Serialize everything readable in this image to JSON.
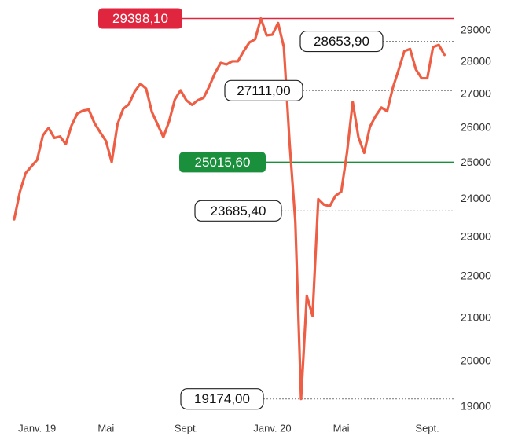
{
  "chart_data": {
    "type": "line",
    "categories": [
      null,
      null,
      null,
      null,
      "Janv. 19",
      null,
      null,
      null,
      null,
      null,
      null,
      null,
      null,
      null,
      null,
      null,
      "Mai",
      null,
      null,
      null,
      null,
      null,
      null,
      null,
      null,
      null,
      null,
      null,
      null,
      null,
      "Sept.",
      null,
      null,
      null,
      null,
      null,
      null,
      null,
      null,
      null,
      null,
      null,
      null,
      null,
      null,
      "Janv. 20",
      null,
      null,
      null,
      null,
      null,
      null,
      null,
      null,
      null,
      null,
      null,
      "Mai",
      null,
      null,
      null,
      null,
      null,
      null,
      null,
      null,
      null,
      null,
      null,
      null,
      null,
      null,
      "Sept.",
      null,
      null,
      null
    ],
    "values": [
      23460,
      24200,
      24710,
      24900,
      25080,
      25780,
      26000,
      25710,
      25750,
      25530,
      26070,
      26420,
      26510,
      26540,
      26140,
      25870,
      25620,
      25020,
      26100,
      26560,
      26700,
      27080,
      27320,
      27170,
      26470,
      26100,
      25730,
      26190,
      26840,
      27120,
      26820,
      26680,
      26820,
      26890,
      27240,
      27650,
      27970,
      27920,
      28020,
      28020,
      28340,
      28620,
      28720,
      29398.1,
      28850,
      28870,
      29250,
      28470,
      25570,
      23400,
      19174,
      21530,
      21050,
      24000,
      23850,
      23810,
      24090,
      24200,
      25280,
      26770,
      25730,
      25280,
      26030,
      26350,
      26600,
      26490,
      27200,
      27750,
      28340,
      28410,
      27770,
      27490,
      27490,
      28470,
      28540,
      28220
    ],
    "color": "#ee5e45",
    "yscale": "log",
    "ylim": [
      18900,
      29550
    ],
    "yticks": [
      19000,
      20000,
      21000,
      22000,
      23000,
      24000,
      25000,
      26000,
      27000,
      28000,
      29000
    ],
    "grid": false,
    "reference_lines": [
      {
        "value": 29398.1,
        "label": "29398,10",
        "color": "#e0263f",
        "style": "solid",
        "box": "filled"
      },
      {
        "value": 28653.9,
        "label": "28653,90",
        "color": "#888888",
        "style": "dotted",
        "box": "outlined"
      },
      {
        "value": 27111,
        "label": "27111,00",
        "color": "#888888",
        "style": "dotted",
        "box": "outlined"
      },
      {
        "value": 25015.6,
        "label": "25015,60",
        "color": "#1a8f3c",
        "style": "solid",
        "box": "filled"
      },
      {
        "value": 23685.4,
        "label": "23685,40",
        "color": "#888888",
        "style": "dotted",
        "box": "outlined"
      },
      {
        "value": 19174,
        "label": "19174,00",
        "color": "#888888",
        "style": "dotted",
        "box": "outlined"
      }
    ]
  }
}
